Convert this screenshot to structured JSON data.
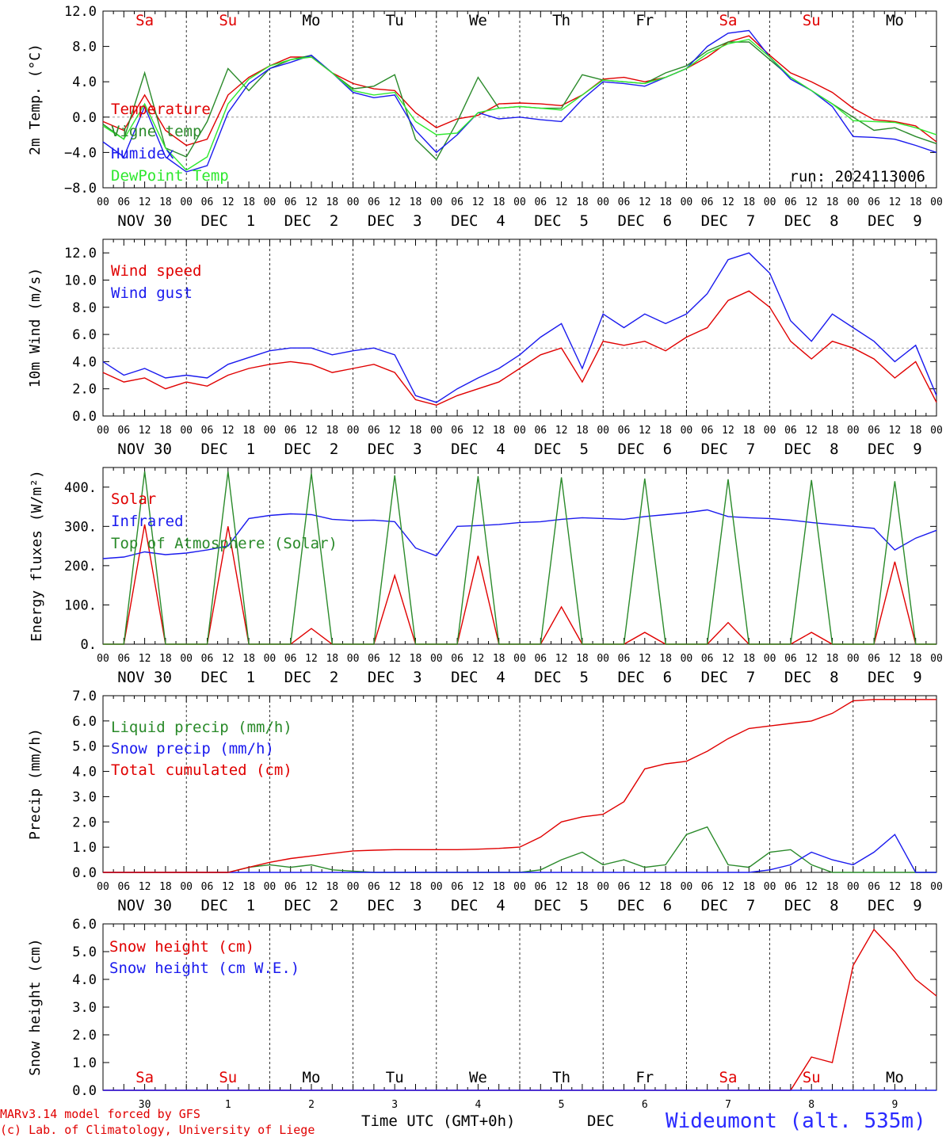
{
  "chart_data": {
    "type": "line",
    "days": [
      "Sa",
      "Su",
      "Mo",
      "Tu",
      "We",
      "Th",
      "Fr",
      "Sa",
      "Su",
      "Mo"
    ],
    "weekend": [
      true,
      true,
      false,
      false,
      false,
      false,
      false,
      true,
      true,
      false
    ],
    "dates": [
      "NOV 30",
      "DEC  1",
      "DEC  2",
      "DEC  3",
      "DEC  4",
      "DEC  5",
      "DEC  6",
      "DEC  7",
      "DEC  8",
      "DEC  9"
    ],
    "hours": [
      "00",
      "06",
      "12",
      "18"
    ],
    "run": "run: 2024113006",
    "x_hours": [
      0,
      6,
      12,
      18,
      24,
      30,
      36,
      42,
      48,
      54,
      60,
      66,
      72,
      78,
      84,
      90,
      96,
      102,
      108,
      114,
      120,
      126,
      132,
      138,
      144,
      150,
      156,
      162,
      168,
      174,
      180,
      186,
      192,
      198,
      204,
      210,
      216,
      222,
      228,
      234,
      240
    ],
    "panels": [
      {
        "ylabel": "2m Temp. (°C)",
        "ylim": [
          -8,
          12
        ],
        "yticks": [
          -8,
          -4,
          0,
          4,
          8,
          12
        ],
        "ytick_labels": [
          "−8.0",
          "−4.0",
          "0.0",
          "4.0",
          "8.0",
          "12.0"
        ],
        "ref_line": 0,
        "day_labels_top": true,
        "series": [
          {
            "name": "Temperature",
            "color": "#e00000",
            "values": [
              -0.5,
              -1.5,
              2.5,
              -1.5,
              -3.2,
              -2.5,
              2.5,
              4.5,
              5.8,
              6.8,
              6.8,
              5.0,
              3.8,
              3.2,
              3.0,
              0.5,
              -1.2,
              -0.2,
              0.2,
              1.5,
              1.6,
              1.5,
              1.3,
              2.5,
              4.3,
              4.5,
              4.0,
              4.5,
              5.5,
              6.8,
              8.5,
              9.2,
              7.0,
              5.0,
              4.0,
              2.8,
              1.0,
              -0.3,
              -0.5,
              -1.0,
              -2.8
            ]
          },
          {
            "name": "Vigne temp",
            "color": "#2a8a2a",
            "values": [
              -0.8,
              -2.5,
              5.0,
              -3.5,
              -4.5,
              -0.5,
              5.5,
              3.0,
              5.5,
              6.5,
              7.0,
              5.0,
              3.2,
              3.5,
              4.8,
              -2.5,
              -4.8,
              -0.5,
              4.5,
              1.0,
              1.2,
              1.0,
              1.0,
              4.8,
              4.2,
              4.0,
              3.8,
              5.0,
              5.8,
              7.5,
              8.5,
              8.5,
              6.5,
              4.5,
              3.0,
              1.5,
              0.0,
              -1.5,
              -1.2,
              -2.2,
              -3.0
            ]
          },
          {
            "name": "Humidex",
            "color": "#1a1aee",
            "values": [
              -2.8,
              -4.5,
              1.2,
              -4.5,
              -6.2,
              -5.5,
              0.5,
              3.8,
              5.5,
              6.2,
              7.0,
              5.0,
              2.8,
              2.2,
              2.5,
              -1.5,
              -4.0,
              -2.0,
              0.5,
              -0.2,
              0.0,
              -0.3,
              -0.5,
              2.0,
              4.0,
              3.8,
              3.5,
              4.5,
              5.5,
              8.0,
              9.5,
              9.8,
              6.8,
              4.3,
              3.0,
              1.2,
              -2.2,
              -2.3,
              -2.5,
              -3.2,
              -4.0
            ]
          },
          {
            "name": "DewPoint Temp",
            "color": "#2ee82e",
            "values": [
              -1.0,
              -2.5,
              1.5,
              -3.5,
              -6.0,
              -4.5,
              1.5,
              4.3,
              5.8,
              6.5,
              6.8,
              5.0,
              3.0,
              2.5,
              2.8,
              -0.5,
              -2.0,
              -1.8,
              0.5,
              1.0,
              1.2,
              1.0,
              0.8,
              2.5,
              4.2,
              4.0,
              3.8,
              4.5,
              5.5,
              7.2,
              8.3,
              8.8,
              6.8,
              4.5,
              3.0,
              1.5,
              -0.4,
              -0.5,
              -0.6,
              -1.2,
              -2.0
            ]
          }
        ]
      },
      {
        "ylabel": "10m Wind (m/s)",
        "ylim": [
          0,
          13
        ],
        "yticks": [
          0,
          2,
          4,
          6,
          8,
          10,
          12
        ],
        "ytick_labels": [
          "0.0",
          "2.0",
          "4.0",
          "6.0",
          "8.0",
          "10.0",
          "12.0"
        ],
        "ref_line": 5,
        "series": [
          {
            "name": "Wind speed",
            "color": "#e00000",
            "values": [
              3.2,
              2.5,
              2.8,
              2.0,
              2.5,
              2.2,
              3.0,
              3.5,
              3.8,
              4.0,
              3.8,
              3.2,
              3.5,
              3.8,
              3.2,
              1.2,
              0.8,
              1.5,
              2.0,
              2.5,
              3.5,
              4.5,
              5.0,
              2.5,
              5.5,
              5.2,
              5.5,
              4.8,
              5.8,
              6.5,
              8.5,
              9.2,
              8.0,
              5.5,
              4.2,
              5.5,
              5.0,
              4.2,
              2.8,
              4.0,
              1.0
            ]
          },
          {
            "name": "Wind gust",
            "color": "#1a1aee",
            "values": [
              4.0,
              3.0,
              3.5,
              2.8,
              3.0,
              2.8,
              3.8,
              4.3,
              4.8,
              5.0,
              5.0,
              4.5,
              4.8,
              5.0,
              4.5,
              1.5,
              1.0,
              2.0,
              2.8,
              3.5,
              4.5,
              5.8,
              6.8,
              3.5,
              7.5,
              6.5,
              7.5,
              6.8,
              7.5,
              9.0,
              11.5,
              12.0,
              10.5,
              7.0,
              5.5,
              7.5,
              6.5,
              5.5,
              4.0,
              5.2,
              1.5
            ]
          }
        ]
      },
      {
        "ylabel": "Energy fluxes (W/m²)",
        "ylim": [
          0,
          450
        ],
        "yticks": [
          0,
          100,
          200,
          300,
          400
        ],
        "ytick_labels": [
          "0.",
          "100.",
          "200.",
          "300.",
          "400."
        ],
        "series": [
          {
            "name": "Solar",
            "color": "#e00000",
            "values": [
              0,
              0,
              305,
              0,
              0,
              0,
              300,
              0,
              0,
              0,
              40,
              0,
              0,
              0,
              175,
              0,
              0,
              0,
              225,
              0,
              0,
              0,
              95,
              0,
              0,
              0,
              30,
              0,
              0,
              0,
              55,
              0,
              0,
              0,
              30,
              0,
              0,
              0,
              210,
              0,
              0
            ]
          },
          {
            "name": "Infrared",
            "color": "#1a1aee",
            "values": [
              218,
              222,
              235,
              228,
              232,
              240,
              250,
              320,
              328,
              332,
              330,
              318,
              315,
              316,
              312,
              245,
              225,
              300,
              302,
              305,
              310,
              312,
              318,
              322,
              320,
              318,
              325,
              330,
              335,
              342,
              325,
              322,
              320,
              316,
              310,
              305,
              300,
              295,
              240,
              270,
              290
            ]
          },
          {
            "name": "Top of Atmosphere (Solar)",
            "color": "#2a8a2a",
            "values": [
              0,
              0,
              440,
              0,
              0,
              0,
              440,
              0,
              0,
              0,
              435,
              0,
              0,
              0,
              430,
              0,
              0,
              0,
              428,
              0,
              0,
              0,
              425,
              0,
              0,
              0,
              422,
              0,
              0,
              0,
              420,
              0,
              0,
              0,
              418,
              0,
              0,
              0,
              415,
              0,
              0
            ]
          }
        ]
      },
      {
        "ylabel": "Precip (mm/h)",
        "ylim": [
          0,
          7
        ],
        "yticks": [
          0,
          1,
          2,
          3,
          4,
          5,
          6,
          7
        ],
        "ytick_labels": [
          "0.0",
          "1.0",
          "2.0",
          "3.0",
          "4.0",
          "5.0",
          "6.0",
          "7.0"
        ],
        "series": [
          {
            "name": "Liquid precip (mm/h)",
            "color": "#2a8a2a",
            "values": [
              0,
              0,
              0,
              0,
              0,
              0,
              0,
              0.2,
              0.3,
              0.2,
              0.3,
              0.1,
              0.05,
              0,
              0,
              0,
              0,
              0,
              0,
              0,
              0,
              0.1,
              0.5,
              0.8,
              0.3,
              0.5,
              0.2,
              0.3,
              1.5,
              1.8,
              0.3,
              0.2,
              0.8,
              0.9,
              0.3,
              0,
              0,
              0,
              0,
              0,
              0
            ]
          },
          {
            "name": "Snow precip (mm/h)",
            "color": "#1a1aee",
            "values": [
              0,
              0,
              0,
              0,
              0,
              0,
              0,
              0,
              0,
              0,
              0,
              0,
              0,
              0,
              0,
              0,
              0,
              0,
              0,
              0,
              0,
              0,
              0,
              0,
              0,
              0,
              0,
              0,
              0,
              0,
              0,
              0,
              0.1,
              0.3,
              0.8,
              0.5,
              0.3,
              0.8,
              1.5,
              0,
              0
            ]
          },
          {
            "name": "Total cumulated (cm)",
            "color": "#e00000",
            "values": [
              0,
              0,
              0,
              0,
              0,
              0,
              0,
              0.2,
              0.4,
              0.55,
              0.65,
              0.75,
              0.85,
              0.88,
              0.9,
              0.9,
              0.9,
              0.9,
              0.92,
              0.95,
              1.0,
              1.4,
              2.0,
              2.2,
              2.3,
              2.8,
              4.1,
              4.3,
              4.4,
              4.8,
              5.3,
              5.7,
              5.8,
              5.9,
              6.0,
              6.3,
              6.8,
              6.85,
              6.85,
              6.85,
              6.85
            ]
          }
        ]
      },
      {
        "ylabel": "Snow height (cm)",
        "ylim": [
          0,
          6
        ],
        "yticks": [
          0,
          1,
          2,
          3,
          4,
          5,
          6
        ],
        "ytick_labels": [
          "0.0",
          "1.0",
          "2.0",
          "3.0",
          "4.0",
          "5.0",
          "6.0"
        ],
        "day_labels_bottom_inside": true,
        "series": [
          {
            "name": "Snow height (cm)",
            "color": "#e00000",
            "values": [
              0,
              0,
              0,
              0,
              0,
              0,
              0,
              0,
              0,
              0,
              0,
              0,
              0,
              0,
              0,
              0,
              0,
              0,
              0,
              0,
              0,
              0,
              0,
              0,
              0,
              0,
              0,
              0,
              0,
              0,
              0,
              0,
              0,
              0,
              1.2,
              1.0,
              4.5,
              5.8,
              5.0,
              4.0,
              3.4
            ]
          },
          {
            "name": "Snow height (cm W.E.)",
            "color": "#1a1aee",
            "values": [
              0,
              0,
              0,
              0,
              0,
              0,
              0,
              0,
              0,
              0,
              0,
              0,
              0,
              0,
              0,
              0,
              0,
              0,
              0,
              0,
              0,
              0,
              0,
              0,
              0,
              0,
              0,
              0,
              0,
              0,
              0,
              0,
              0,
              0,
              0,
              0,
              0,
              0,
              0,
              0,
              0
            ]
          }
        ]
      }
    ],
    "bottom_day_numbers": [
      "30",
      "1",
      "2",
      "3",
      "4",
      "5",
      "6",
      "7",
      "8",
      "9"
    ],
    "xlabel": "Time UTC (GMT+0h)",
    "month_label": "DEC",
    "station": "Wideumont (alt. 535m)",
    "credit_line1": "MARv3.14 model forced by GFS",
    "credit_line2": "(c) Lab. of Climatology, University of Liege"
  }
}
